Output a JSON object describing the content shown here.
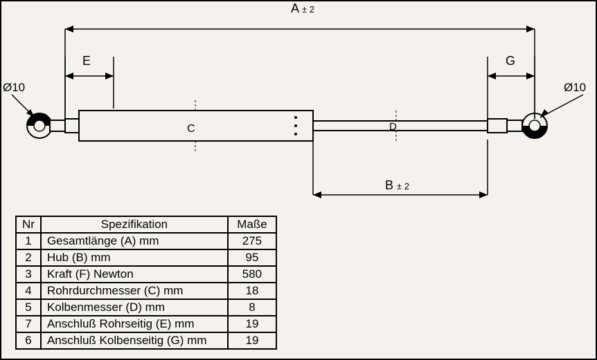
{
  "drawing": {
    "dimensions": {
      "A_label": "A",
      "A_tolerance": "± 2",
      "B_label": "B",
      "B_tolerance": "± 2",
      "E_label": "E",
      "G_label": "G",
      "C_label": "C",
      "D_label": "D"
    },
    "diameter_left": "Ø10",
    "diameter_right": "Ø10",
    "colors": {
      "stroke": "#000000",
      "background": "#f5f2ed",
      "dim_line": "#000000"
    },
    "line_width": 2
  },
  "table": {
    "headers": {
      "nr": "Nr",
      "spec": "Spezifikation",
      "val": "Maße"
    },
    "rows": [
      {
        "nr": "1",
        "spec": "Gesamtlänge (A) mm",
        "val": "275"
      },
      {
        "nr": "2",
        "spec": "Hub (B)  mm",
        "val": "95"
      },
      {
        "nr": "3",
        "spec": "Kraft (F) Newton",
        "val": "580"
      },
      {
        "nr": "4",
        "spec": "Rohrdurchmesser (C) mm",
        "val": "18"
      },
      {
        "nr": "5",
        "spec": "Kolbenmesser (D) mm",
        "val": "8"
      },
      {
        "nr": "7",
        "spec": "Anschluß Rohrseitig (E) mm",
        "val": "19"
      },
      {
        "nr": "6",
        "spec": "Anschluß Kolbenseitig (G) mm",
        "val": "19"
      }
    ]
  }
}
